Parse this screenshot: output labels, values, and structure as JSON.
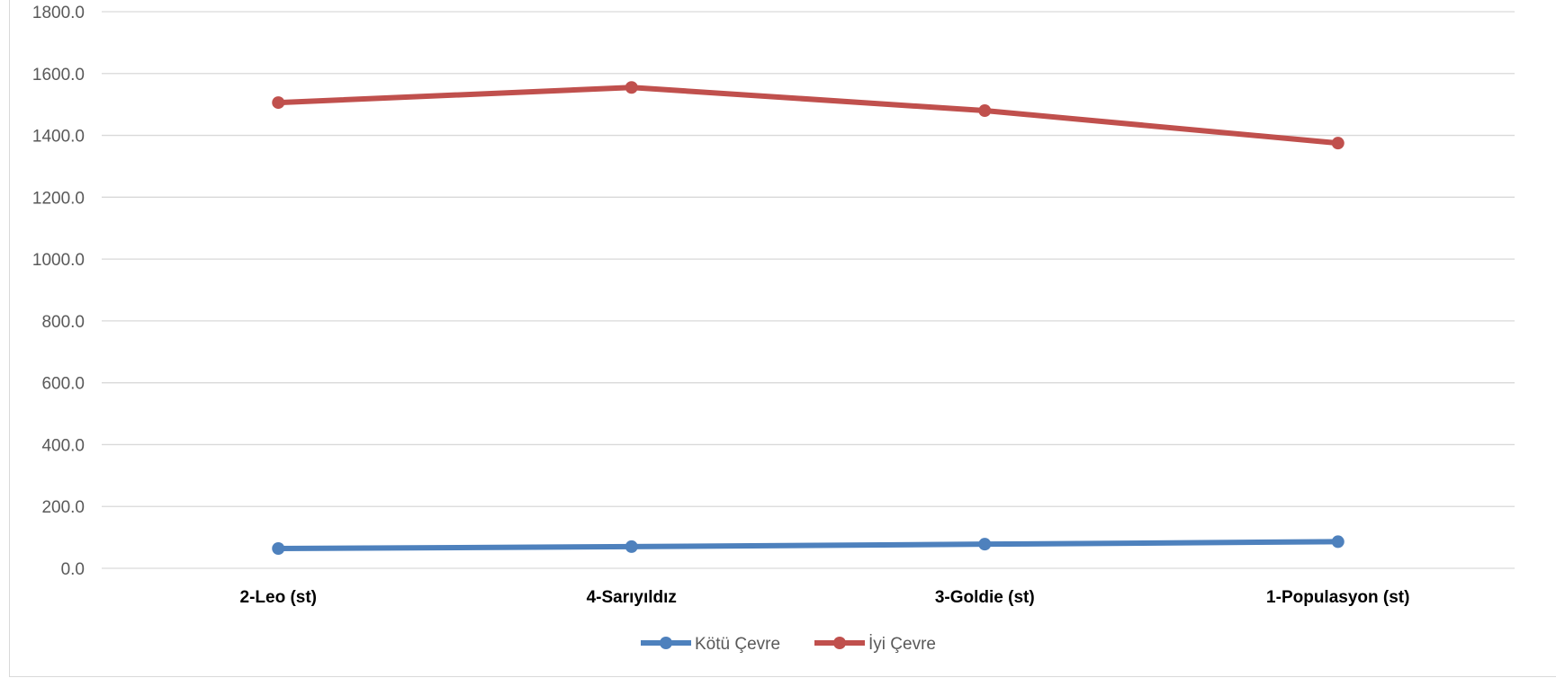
{
  "chart_data": {
    "type": "line",
    "categories": [
      "2-Leo (st)",
      "4-Sarıyıldız",
      "3-Goldie (st)",
      "1-Populasyon (st)"
    ],
    "series": [
      {
        "name": "Kötü Çevre",
        "color": "#4e81bd",
        "values": [
          64,
          70,
          78,
          86
        ]
      },
      {
        "name": "İyi Çevre",
        "color": "#c0504d",
        "values": [
          1506,
          1555,
          1480,
          1375
        ]
      }
    ],
    "y_ticks": [
      "0.0",
      "200.0",
      "400.0",
      "600.0",
      "800.0",
      "1000.0",
      "1200.0",
      "1400.0",
      "1600.0",
      "1800.0"
    ],
    "ylim": [
      0,
      1800
    ],
    "grid": true,
    "legend_position": "bottom",
    "gridline_color": "#d9d9d9",
    "axis_text_color": "#595959"
  }
}
